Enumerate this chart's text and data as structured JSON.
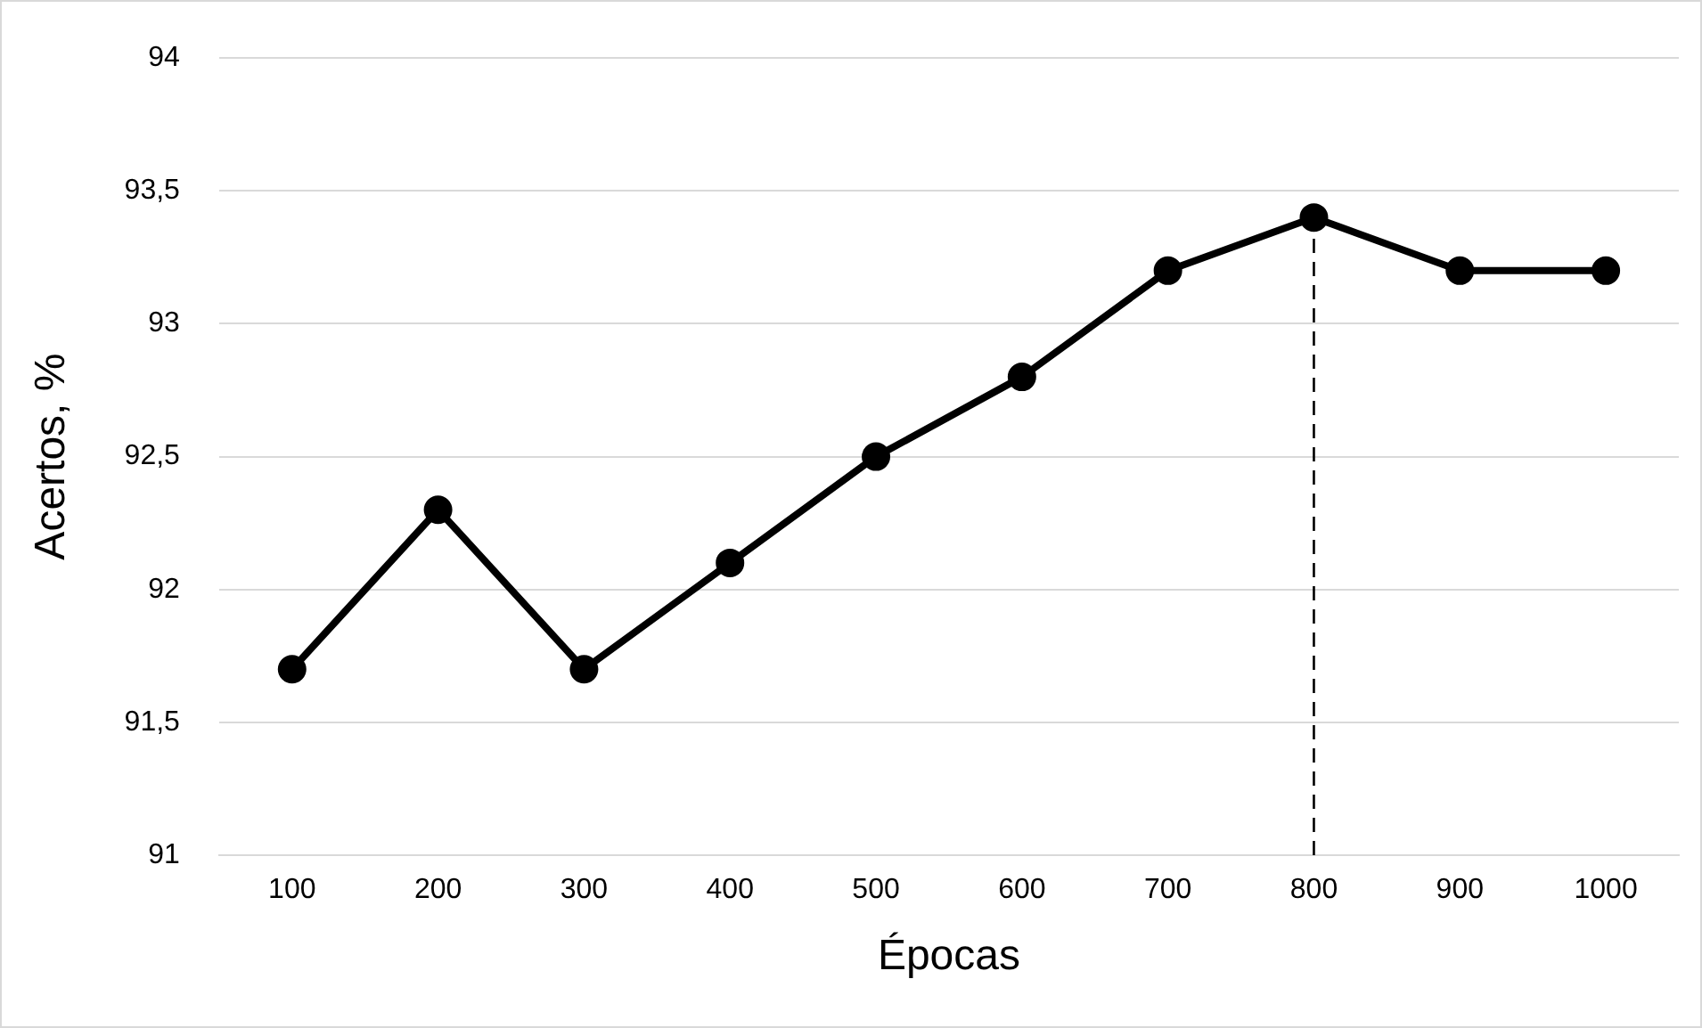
{
  "chart_data": {
    "type": "line",
    "xlabel": "Épocas",
    "ylabel": "Acertos, %",
    "categories": [
      "100",
      "200",
      "300",
      "400",
      "500",
      "600",
      "700",
      "800",
      "900",
      "1000"
    ],
    "series": [
      {
        "color": "#000000",
        "values": [
          91.7,
          92.3,
          91.7,
          92.1,
          92.5,
          92.8,
          93.2,
          93.4,
          93.2,
          93.2
        ]
      }
    ],
    "ylim": [
      91,
      94
    ],
    "yticks": [
      91,
      {
        "value": 91.5,
        "label": "91,5"
      },
      92,
      {
        "value": 92.5,
        "label": "92,5"
      },
      93,
      {
        "value": 93.5,
        "label": "93,5"
      },
      94
    ],
    "ref_lines": [
      {
        "axis": "x",
        "value": "800",
        "color": "#000000",
        "line_style": "dashed"
      }
    ],
    "grid": "y",
    "legend": false,
    "marker": "circle",
    "line_style": "solid"
  }
}
